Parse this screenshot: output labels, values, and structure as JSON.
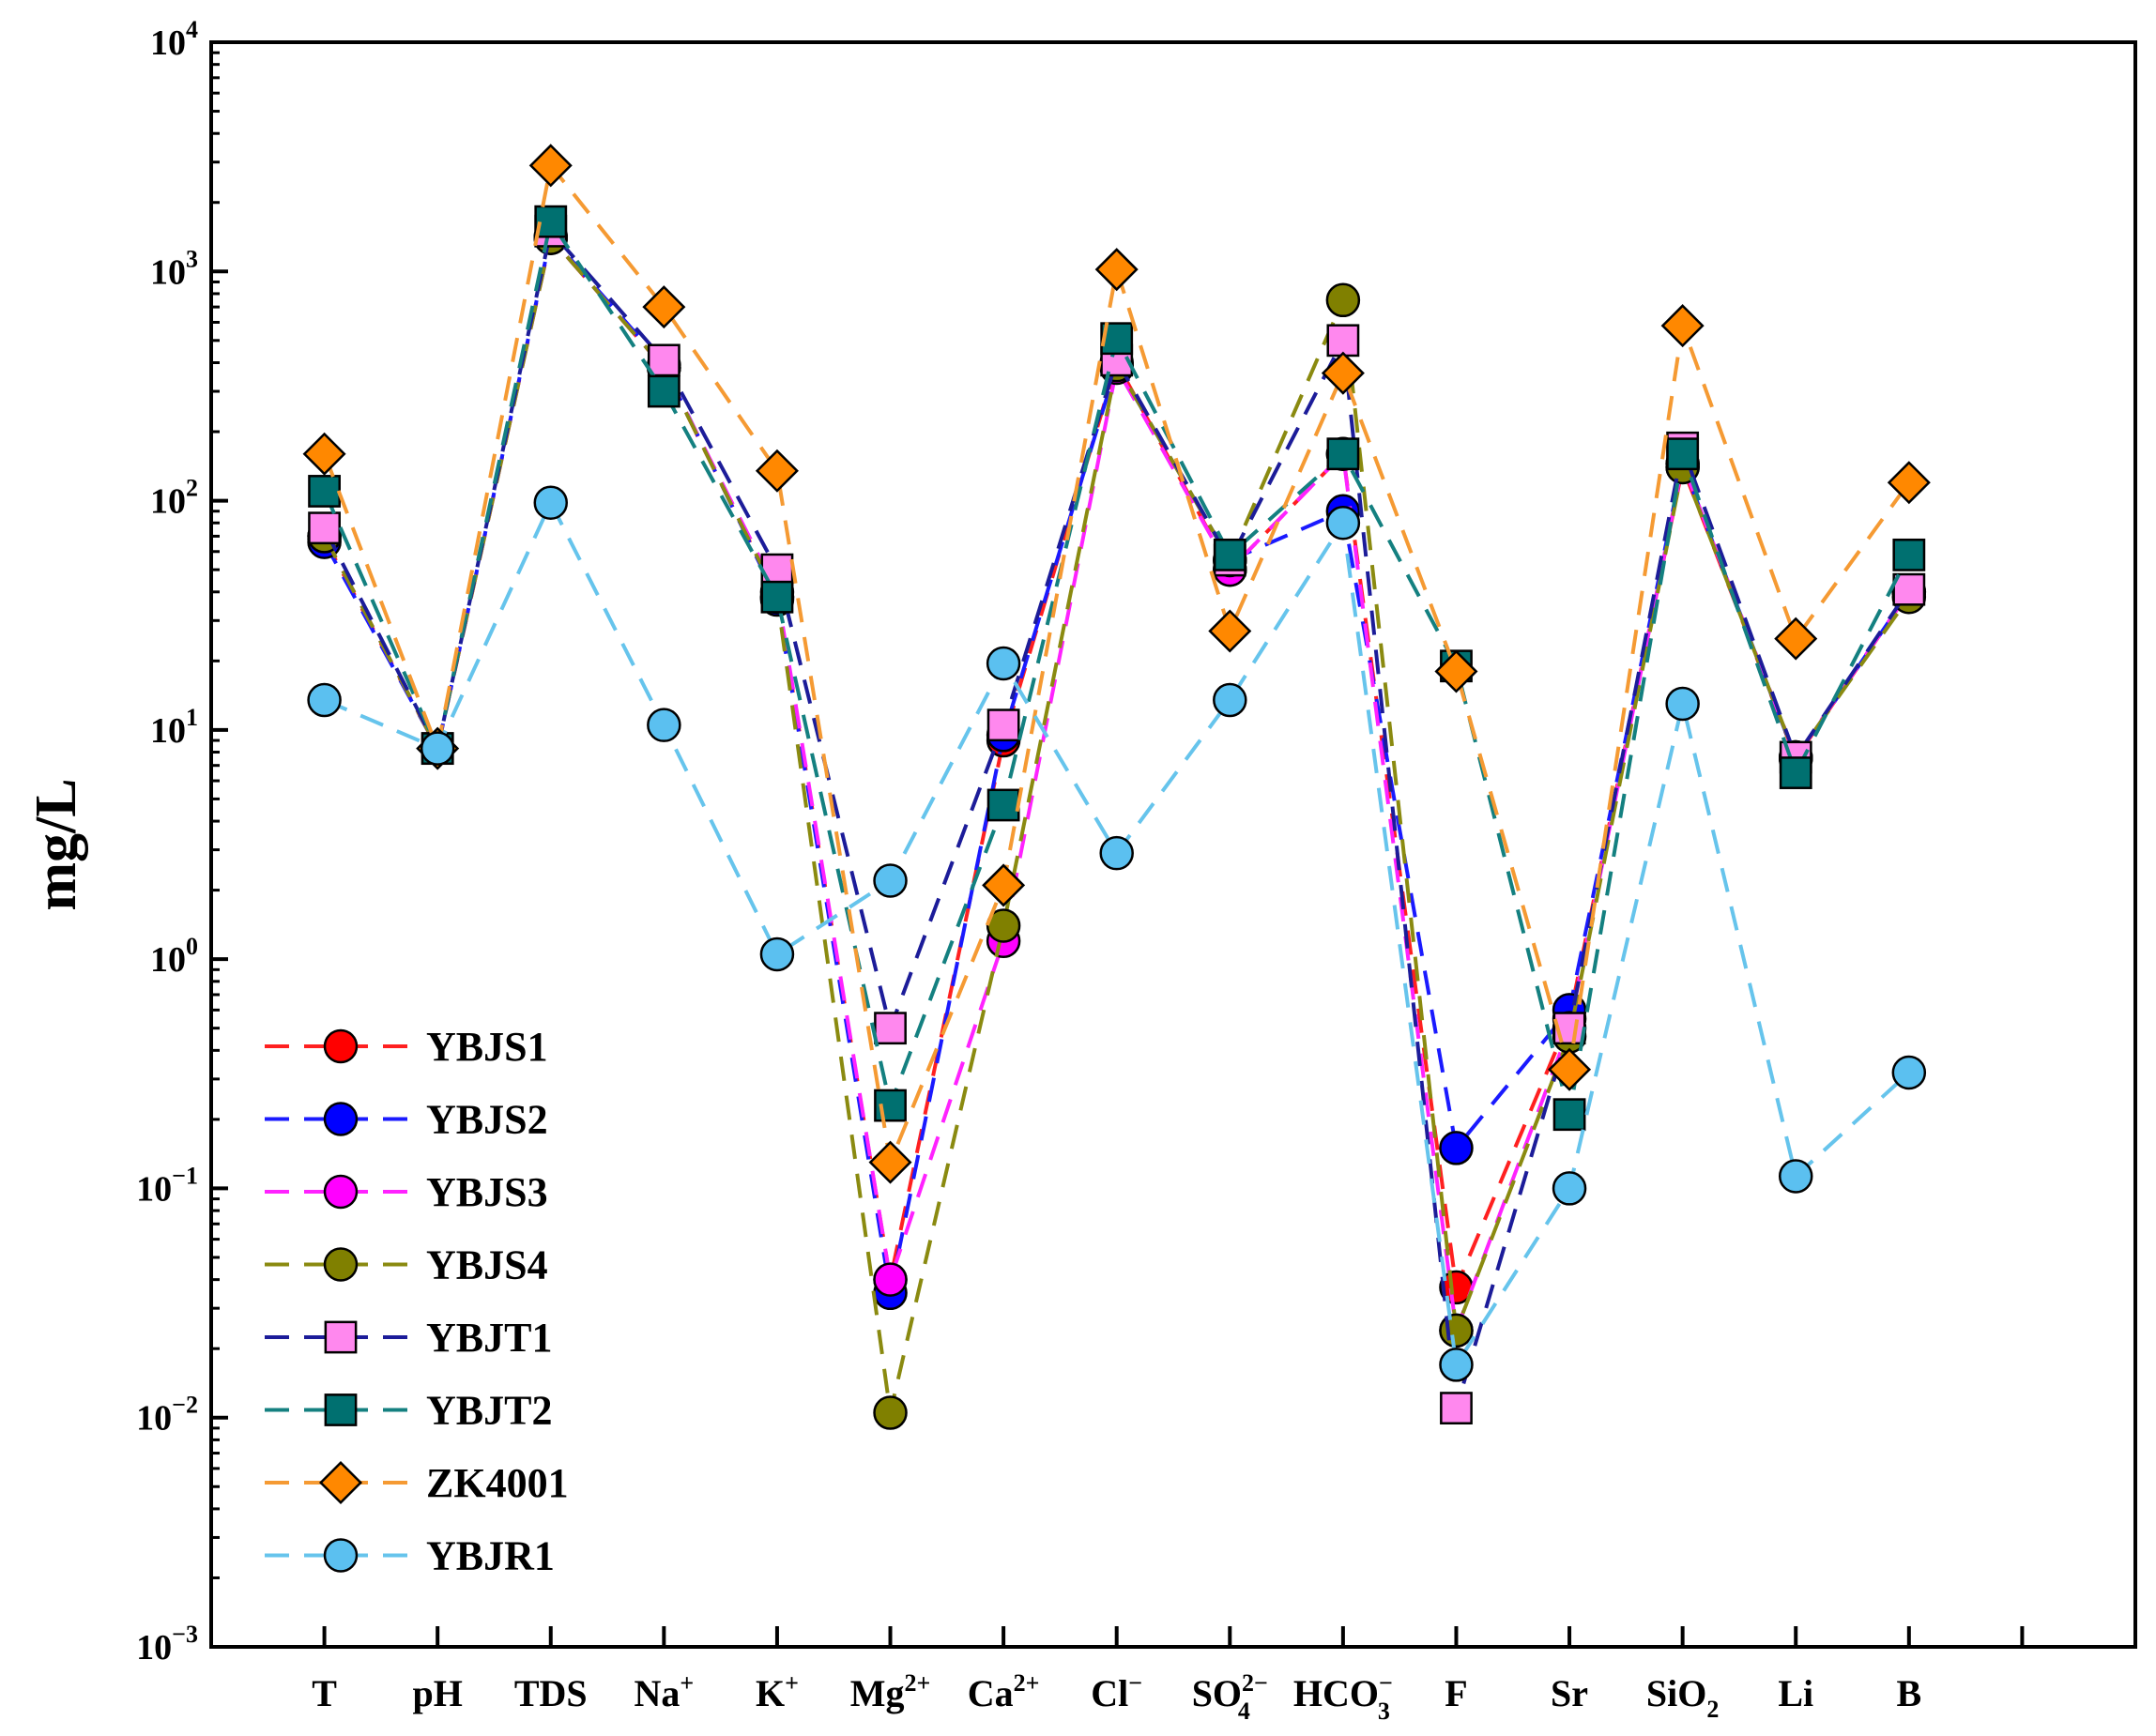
{
  "chart_data": {
    "type": "line",
    "yscale": "log",
    "ylabel": "mg/L",
    "ylim": [
      0.001,
      10000
    ],
    "ylim_exponents": [
      -3,
      4
    ],
    "y_tick_base": "10",
    "y_tick_exponents": [
      "−3",
      "−2",
      "−1",
      "0",
      "1",
      "2",
      "3",
      "4"
    ],
    "grid": false,
    "legend_position": "lower-left",
    "categories": [
      {
        "main": "T"
      },
      {
        "main": "pH"
      },
      {
        "main": "TDS"
      },
      {
        "main": "Na",
        "sup": "+"
      },
      {
        "main": "K",
        "sup": "+"
      },
      {
        "main": "Mg",
        "sup": "2+"
      },
      {
        "main": "Ca",
        "sup": "2+"
      },
      {
        "main": "Cl",
        "sup": "−"
      },
      {
        "main": "SO",
        "sup": "2−",
        "sub": "4"
      },
      {
        "main": "HCO",
        "sup": "−",
        "sub": "3"
      },
      {
        "main": "F"
      },
      {
        "main": "Sr"
      },
      {
        "main": "SiO",
        "sub": "2"
      },
      {
        "main": "Li"
      },
      {
        "main": "B"
      }
    ],
    "series": [
      {
        "name": "YBJS1",
        "line_color": "#ff2020",
        "marker": "circle",
        "marker_color": "#ff0000",
        "values": [
          68,
          8.3,
          1400,
          380,
          38,
          0.04,
          9,
          400,
          50,
          160,
          0.037,
          0.55,
          140,
          7.5,
          40
        ]
      },
      {
        "name": "YBJS2",
        "line_color": "#1a1aff",
        "marker": "circle",
        "marker_color": "#0000ff",
        "values": [
          66,
          8.3,
          1420,
          390,
          37,
          0.035,
          9.5,
          390,
          55,
          90,
          0.15,
          0.6,
          145,
          7.5,
          40
        ]
      },
      {
        "name": "YBJS3",
        "line_color": "#ff22ff",
        "marker": "circle",
        "marker_color": "#ff00ff",
        "values": [
          70,
          8.3,
          1400,
          380,
          40,
          0.04,
          1.2,
          380,
          50,
          160,
          0.024,
          0.5,
          145,
          7.6,
          40
        ]
      },
      {
        "name": "YBJS4",
        "line_color": "#8a8a10",
        "marker": "circle",
        "marker_color": "#808000",
        "values": [
          70,
          8.3,
          1400,
          380,
          38,
          0.0105,
          1.4,
          390,
          55,
          750,
          0.024,
          0.46,
          140,
          7.6,
          38
        ]
      },
      {
        "name": "YBJT1",
        "line_color": "#1c1c99",
        "marker": "square",
        "marker_color": "#ff88ee",
        "values": [
          76,
          8.3,
          1500,
          410,
          50,
          0.5,
          10.5,
          410,
          55,
          500,
          0.011,
          0.5,
          170,
          7.6,
          41
        ]
      },
      {
        "name": "YBJT2",
        "line_color": "#148080",
        "marker": "square",
        "marker_color": "#007070",
        "values": [
          110,
          8.3,
          1650,
          300,
          38,
          0.23,
          4.7,
          510,
          58,
          160,
          19,
          0.21,
          160,
          6.5,
          58
        ]
      },
      {
        "name": "ZK4001",
        "line_color": "#f59a33",
        "marker": "diamond",
        "marker_color": "#ff8800",
        "values": [
          160,
          8.3,
          2900,
          700,
          135,
          0.13,
          2.1,
          1020,
          27,
          360,
          18,
          0.33,
          580,
          25,
          120
        ]
      },
      {
        "name": "YBJR1",
        "line_color": "#66c4ec",
        "marker": "circle",
        "marker_color": "#5bc0f0",
        "values": [
          13.5,
          8.3,
          98,
          10.5,
          1.05,
          2.2,
          19.5,
          2.9,
          13.5,
          80,
          0.017,
          0.1,
          13,
          0.113,
          0.32
        ]
      }
    ]
  }
}
